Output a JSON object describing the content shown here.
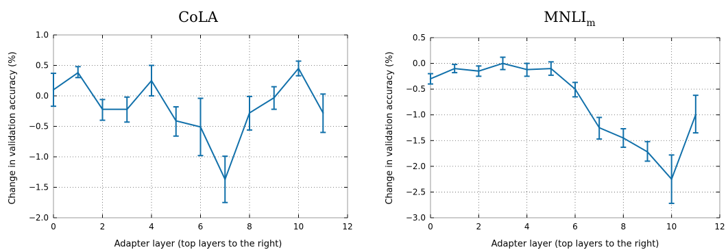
{
  "chart_data": [
    {
      "type": "line",
      "title": "CoLA",
      "title_subscript": "",
      "xlabel": "Adapter layer (top layers to the right)",
      "ylabel": "Change in validation accuracy (%)",
      "xlim": [
        0,
        12
      ],
      "ylim": [
        -2.0,
        1.0
      ],
      "xticks": [
        0,
        2,
        4,
        6,
        8,
        10,
        12
      ],
      "yticks": [
        -2.0,
        -1.5,
        -1.0,
        -0.5,
        0.0,
        0.5,
        1.0
      ],
      "ytick_labels": [
        "−2.0",
        "−1.5",
        "−1.0",
        "−0.5",
        "0.0",
        "0.5",
        "1.0"
      ],
      "grid": true,
      "color": "#1170aa",
      "x": [
        0,
        1,
        2,
        3,
        4,
        5,
        6,
        7,
        8,
        9,
        10,
        11
      ],
      "values": [
        0.1,
        0.38,
        -0.22,
        -0.22,
        0.25,
        -0.41,
        -0.51,
        -1.37,
        -0.28,
        -0.03,
        0.45,
        -0.28
      ],
      "err_low": [
        -0.17,
        0.3,
        -0.4,
        -0.43,
        0.0,
        -0.66,
        -0.98,
        -1.75,
        -0.56,
        -0.22,
        0.33,
        -0.6
      ],
      "err_high": [
        0.37,
        0.48,
        -0.06,
        -0.02,
        0.5,
        -0.18,
        -0.04,
        -0.99,
        -0.01,
        0.15,
        0.57,
        0.03
      ]
    },
    {
      "type": "line",
      "title": "MNLI",
      "title_subscript": "m",
      "xlabel": "Adapter layer (top layers to the right)",
      "ylabel": "Change in validation accuracy (%)",
      "xlim": [
        0,
        12
      ],
      "ylim": [
        -3.0,
        0.5
      ],
      "xticks": [
        0,
        2,
        4,
        6,
        8,
        10,
        12
      ],
      "yticks": [
        -3.0,
        -2.5,
        -2.0,
        -1.5,
        -1.0,
        -0.5,
        0.0,
        0.5
      ],
      "ytick_labels": [
        "−3.0",
        "−2.5",
        "−2.0",
        "−1.5",
        "−1.0",
        "−0.5",
        "0.0",
        "0.5"
      ],
      "grid": true,
      "color": "#1170aa",
      "x": [
        0,
        1,
        2,
        3,
        4,
        5,
        6,
        7,
        8,
        9,
        10,
        11
      ],
      "values": [
        -0.3,
        -0.1,
        -0.15,
        0.0,
        -0.12,
        -0.1,
        -0.5,
        -1.25,
        -1.45,
        -1.72,
        -2.25,
        -1.0
      ],
      "err_low": [
        -0.4,
        -0.18,
        -0.25,
        -0.12,
        -0.25,
        -0.23,
        -0.65,
        -1.47,
        -1.63,
        -1.9,
        -2.72,
        -1.35
      ],
      "err_high": [
        -0.2,
        -0.02,
        -0.05,
        0.12,
        0.0,
        0.03,
        -0.37,
        -1.05,
        -1.27,
        -1.52,
        -1.78,
        -0.62
      ]
    }
  ]
}
